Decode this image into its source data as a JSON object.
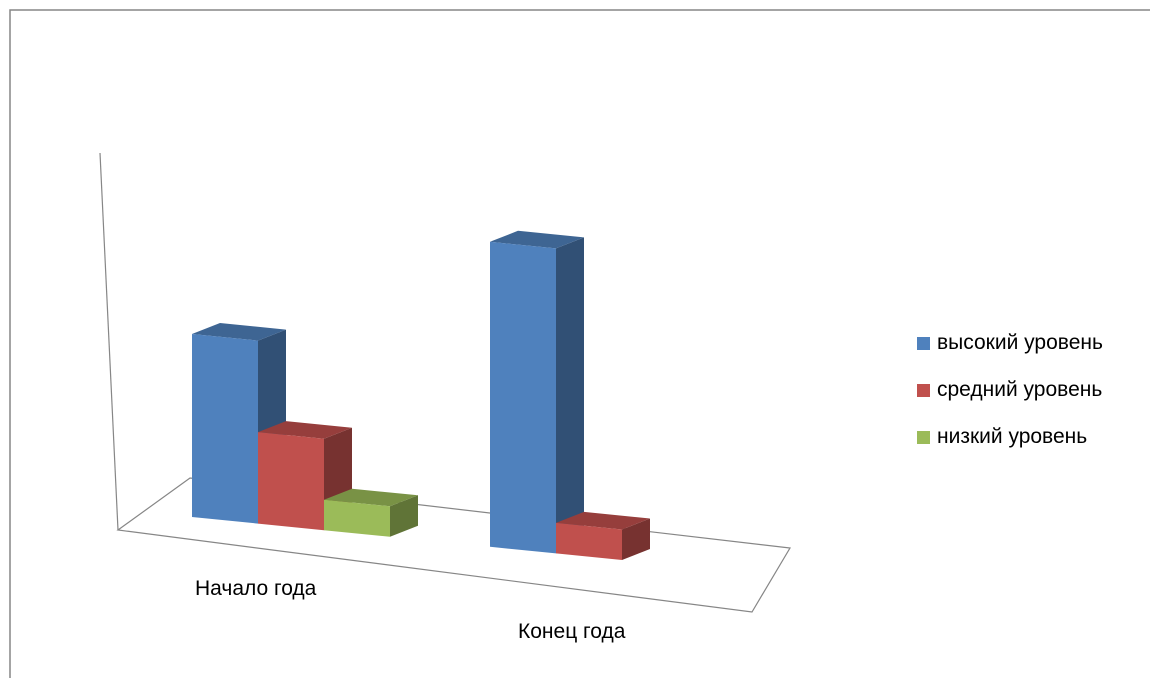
{
  "chart_data": {
    "type": "bar",
    "variant": "3d-column",
    "title": "",
    "xlabel": "",
    "ylabel": "",
    "grid": false,
    "legend_position": "right",
    "categories": [
      "Начало года",
      "Конец года"
    ],
    "series": [
      {
        "name": "высокий уровень",
        "values": [
          6,
          10
        ],
        "color": "#4F81BD"
      },
      {
        "name": "средний уровень",
        "values": [
          3,
          1
        ],
        "color": "#C0504D"
      },
      {
        "name": "низкий уровень",
        "values": [
          1,
          0
        ],
        "color": "#9BBB59"
      }
    ]
  }
}
